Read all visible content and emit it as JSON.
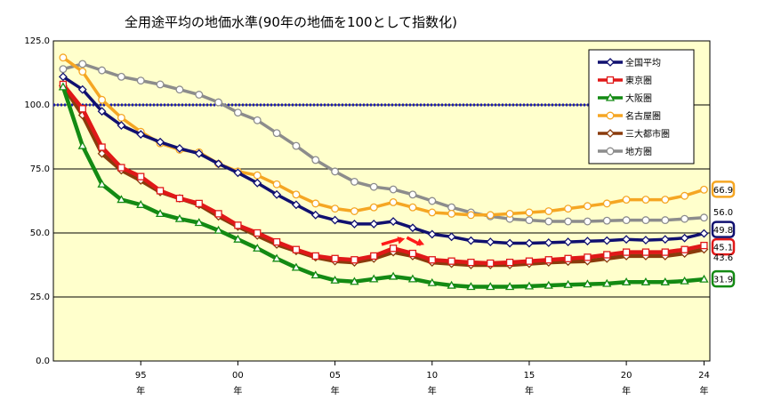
{
  "chart_data": {
    "type": "line",
    "title": "全用途平均の地価水準(90年の地価を100として指数化)",
    "ylim": [
      0,
      125
    ],
    "yticks": [
      "0.0",
      "25.0",
      "50.0",
      "75.0",
      "100.0",
      "125.0"
    ],
    "grid": "horizontal",
    "legend_position": "top-right",
    "x_labels": [
      {
        "year": 1995,
        "label": "95",
        "unit": "年"
      },
      {
        "year": 2000,
        "label": "00",
        "unit": "年"
      },
      {
        "year": 2005,
        "label": "05",
        "unit": "年"
      },
      {
        "year": 2010,
        "label": "10",
        "unit": "年"
      },
      {
        "year": 2015,
        "label": "15",
        "unit": "年"
      },
      {
        "year": 2020,
        "label": "20",
        "unit": "年"
      },
      {
        "year": 2024,
        "label": "24",
        "unit": "年"
      }
    ],
    "x": [
      1991,
      1992,
      1993,
      1994,
      1995,
      1996,
      1997,
      1998,
      1999,
      2000,
      2001,
      2002,
      2003,
      2004,
      2005,
      2006,
      2007,
      2008,
      2009,
      2010,
      2011,
      2012,
      2013,
      2014,
      2015,
      2016,
      2017,
      2018,
      2019,
      2020,
      2021,
      2022,
      2023,
      2024
    ],
    "reference_line": {
      "y": 100,
      "color": "#1b1bb0"
    },
    "series": [
      {
        "name": "全国平均",
        "color": "#101070",
        "marker": "diamond",
        "values": [
          111,
          106,
          97.5,
          92,
          88.5,
          85.5,
          83,
          81,
          77,
          73.5,
          69.5,
          65,
          61,
          57,
          55,
          53.5,
          53.5,
          54.5,
          52,
          49.5,
          48.5,
          47,
          46.5,
          46,
          46,
          46.2,
          46.5,
          46.8,
          47,
          47.5,
          47.2,
          47.5,
          48,
          49.8
        ],
        "end_label": "49.8",
        "end_box": true
      },
      {
        "name": "東京圏",
        "color": "#e01818",
        "marker": "square",
        "values": [
          108,
          98.5,
          83.5,
          75.5,
          72,
          66.5,
          63.5,
          61.5,
          57.5,
          53,
          50,
          46.5,
          43.5,
          41,
          40,
          39.5,
          41,
          44,
          42,
          39.5,
          39,
          38.5,
          38.2,
          38.5,
          39,
          39.5,
          40,
          40.5,
          41.5,
          42.5,
          42.5,
          42.5,
          43.5,
          45.1
        ],
        "end_label": "45.1",
        "end_box": true
      },
      {
        "name": "大阪圏",
        "color": "#138a13",
        "marker": "triangle",
        "values": [
          107,
          84,
          69,
          63,
          61,
          57.5,
          55.5,
          54,
          51,
          47.5,
          44,
          40,
          36.5,
          33.5,
          31.5,
          31,
          32,
          33,
          32,
          30.5,
          29.5,
          29,
          29,
          29,
          29.2,
          29.5,
          29.8,
          30,
          30.2,
          30.8,
          30.8,
          30.8,
          31.2,
          31.9
        ],
        "end_label": "31.9",
        "end_box": true
      },
      {
        "name": "名古屋圏",
        "color": "#f5a623",
        "marker": "circle",
        "values": [
          118.5,
          113,
          102,
          95,
          89.5,
          85,
          82.5,
          81.5,
          77,
          74,
          72.5,
          69,
          65,
          61.5,
          59.5,
          58.5,
          60,
          62,
          60,
          58,
          57.5,
          57,
          57,
          57.5,
          58,
          58.5,
          59.5,
          60.5,
          61.5,
          63,
          63,
          63,
          64.5,
          66.9
        ],
        "end_label": "66.9",
        "end_box": true
      },
      {
        "name": "三大都市圏",
        "color": "#8a3b0c",
        "marker": "diamond",
        "values": [
          107.5,
          96,
          81,
          74.5,
          70.5,
          66,
          63.5,
          61,
          56.5,
          52.5,
          49,
          45.5,
          43,
          40.5,
          39,
          38.5,
          40,
          42.5,
          41,
          38.5,
          38,
          37.5,
          37.5,
          37.5,
          38,
          38.5,
          38.8,
          39,
          40,
          41,
          41,
          41,
          42,
          43.6
        ],
        "end_label": "43.6",
        "end_box": false
      },
      {
        "name": "地方圏",
        "color": "#8c8c8c",
        "marker": "circle",
        "values": [
          114,
          116,
          113.5,
          111,
          109.5,
          108,
          106,
          104,
          101,
          97,
          94,
          89,
          84,
          78.5,
          74,
          70,
          68,
          67,
          65,
          62.5,
          60,
          58,
          56.5,
          55.5,
          55,
          54.5,
          54.5,
          54.5,
          54.8,
          55,
          55,
          55,
          55.5,
          56.0
        ],
        "end_label": "56.0",
        "end_box": false
      }
    ],
    "annotation": "red arrows pointing right near 2008-2010"
  }
}
